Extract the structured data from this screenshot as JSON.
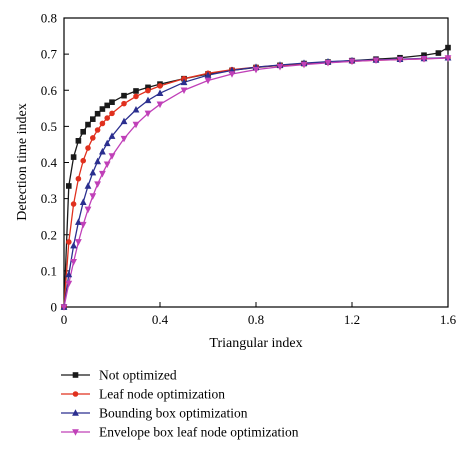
{
  "chart_data": {
    "type": "line",
    "title": "",
    "xlabel": "Triangular index",
    "ylabel": "Detection time index",
    "xlim": [
      0,
      1.6
    ],
    "ylim": [
      0,
      0.8
    ],
    "xticks": [
      "0",
      "0.4",
      "0.8",
      "1.2",
      "1.6"
    ],
    "yticks": [
      "0",
      "0.1",
      "0.2",
      "0.3",
      "0.4",
      "0.5",
      "0.6",
      "0.7",
      "0.8"
    ],
    "grid": false,
    "legend_position": "bottom",
    "series": [
      {
        "name": "Not optimized",
        "color": "#1a1a1a",
        "marker": "square",
        "x": [
          0,
          0.02,
          0.04,
          0.06,
          0.08,
          0.1,
          0.12,
          0.14,
          0.16,
          0.18,
          0.2,
          0.25,
          0.3,
          0.35,
          0.4,
          0.5,
          0.6,
          0.7,
          0.8,
          0.9,
          1.0,
          1.1,
          1.2,
          1.3,
          1.4,
          1.5,
          1.56,
          1.6
        ],
        "y": [
          0,
          0.335,
          0.415,
          0.46,
          0.485,
          0.505,
          0.52,
          0.535,
          0.548,
          0.558,
          0.567,
          0.585,
          0.598,
          0.608,
          0.617,
          0.632,
          0.645,
          0.655,
          0.663,
          0.669,
          0.674,
          0.678,
          0.682,
          0.686,
          0.69,
          0.697,
          0.703,
          0.718
        ]
      },
      {
        "name": "Leaf node optimization",
        "color": "#e0301e",
        "marker": "circle",
        "x": [
          0,
          0.02,
          0.04,
          0.06,
          0.08,
          0.1,
          0.12,
          0.14,
          0.16,
          0.18,
          0.2,
          0.25,
          0.3,
          0.35,
          0.4,
          0.5,
          0.6,
          0.7,
          0.8,
          0.9,
          1.0,
          1.1,
          1.2,
          1.3,
          1.4,
          1.5,
          1.6
        ],
        "y": [
          0,
          0.18,
          0.285,
          0.355,
          0.405,
          0.44,
          0.468,
          0.49,
          0.508,
          0.523,
          0.536,
          0.563,
          0.583,
          0.599,
          0.612,
          0.632,
          0.647,
          0.657,
          0.664,
          0.669,
          0.673,
          0.677,
          0.68,
          0.683,
          0.685,
          0.687,
          0.69
        ]
      },
      {
        "name": "Bounding box optimization",
        "color": "#2b2f8f",
        "marker": "triangle-up",
        "x": [
          0,
          0.02,
          0.04,
          0.06,
          0.08,
          0.1,
          0.12,
          0.14,
          0.16,
          0.18,
          0.2,
          0.25,
          0.3,
          0.35,
          0.4,
          0.5,
          0.6,
          0.7,
          0.8,
          0.9,
          1.0,
          1.1,
          1.2,
          1.3,
          1.4,
          1.5,
          1.6
        ],
        "y": [
          0,
          0.09,
          0.17,
          0.235,
          0.29,
          0.335,
          0.372,
          0.403,
          0.43,
          0.453,
          0.473,
          0.514,
          0.546,
          0.572,
          0.592,
          0.622,
          0.642,
          0.655,
          0.664,
          0.67,
          0.675,
          0.679,
          0.682,
          0.684,
          0.686,
          0.688,
          0.69
        ]
      },
      {
        "name": "Envelope box leaf node optimization",
        "color": "#c040b8",
        "marker": "triangle-down",
        "x": [
          0,
          0.02,
          0.04,
          0.06,
          0.08,
          0.1,
          0.12,
          0.14,
          0.16,
          0.18,
          0.2,
          0.25,
          0.3,
          0.35,
          0.4,
          0.5,
          0.6,
          0.7,
          0.8,
          0.9,
          1.0,
          1.1,
          1.2,
          1.3,
          1.4,
          1.5,
          1.6
        ],
        "y": [
          0,
          0.065,
          0.125,
          0.18,
          0.228,
          0.27,
          0.307,
          0.34,
          0.369,
          0.395,
          0.418,
          0.466,
          0.505,
          0.536,
          0.561,
          0.6,
          0.627,
          0.645,
          0.657,
          0.665,
          0.671,
          0.676,
          0.68,
          0.683,
          0.685,
          0.687,
          0.689
        ]
      }
    ]
  }
}
